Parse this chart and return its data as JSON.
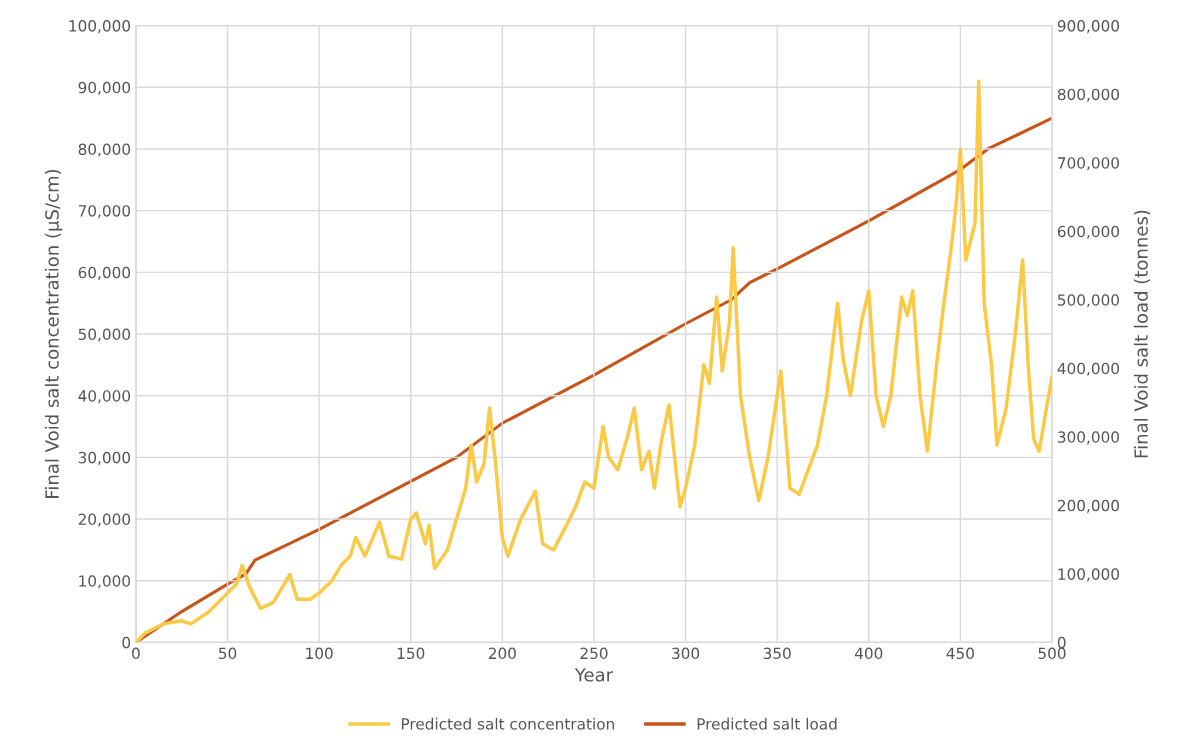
{
  "chart_data": {
    "type": "line",
    "xlabel": "Year",
    "ylabel": "Final Void salt concentration (µS/cm)",
    "y2label": "Final Void salt load (tonnes)",
    "xlim": [
      0,
      500
    ],
    "xticks": [
      0,
      50,
      100,
      150,
      200,
      250,
      300,
      350,
      400,
      450,
      500
    ],
    "ylim": [
      0,
      100000
    ],
    "yticks": [
      {
        "value": 0,
        "label": "0"
      },
      {
        "value": 10000,
        "label": "10,000"
      },
      {
        "value": 20000,
        "label": "20,000"
      },
      {
        "value": 30000,
        "label": "30,000"
      },
      {
        "value": 40000,
        "label": "40,000"
      },
      {
        "value": 50000,
        "label": "50,000"
      },
      {
        "value": 60000,
        "label": "60,000"
      },
      {
        "value": 70000,
        "label": "70,000"
      },
      {
        "value": 80000,
        "label": "80,000"
      },
      {
        "value": 90000,
        "label": "90,000"
      },
      {
        "value": 100000,
        "label": "100,000"
      }
    ],
    "y2lim": [
      0,
      900000
    ],
    "y2ticks": [
      {
        "value": 0,
        "label": "0"
      },
      {
        "value": 100000,
        "label": "100,000"
      },
      {
        "value": 200000,
        "label": "200,000"
      },
      {
        "value": 300000,
        "label": "300,000"
      },
      {
        "value": 400000,
        "label": "400,000"
      },
      {
        "value": 500000,
        "label": "500,000"
      },
      {
        "value": 600000,
        "label": "600,000"
      },
      {
        "value": 700000,
        "label": "700,000"
      },
      {
        "value": 800000,
        "label": "800,000"
      },
      {
        "value": 900000,
        "label": "900,000"
      }
    ],
    "grid": true,
    "legend": "bottom",
    "marker": "none",
    "line_style": "solid",
    "series": [
      {
        "name": "Predicted salt concentration",
        "color": "#fcc945",
        "x": [
          0,
          5,
          15,
          25,
          30,
          40,
          50,
          55,
          58,
          62,
          68,
          75,
          84,
          88,
          95,
          100,
          107,
          112,
          117,
          120,
          125,
          133,
          138,
          145,
          150,
          153,
          158,
          160,
          163,
          170,
          175,
          180,
          183,
          186,
          190,
          193,
          196,
          200,
          203,
          210,
          218,
          222,
          228,
          235,
          240,
          245,
          250,
          255,
          258,
          263,
          268,
          272,
          276,
          280,
          283,
          287,
          291,
          294,
          297,
          300,
          305,
          310,
          313,
          317,
          320,
          324,
          326,
          330,
          335,
          340,
          345,
          352,
          357,
          362,
          367,
          372,
          377,
          383,
          386,
          390,
          396,
          400,
          404,
          408,
          412,
          418,
          421,
          424,
          428,
          432,
          437,
          441,
          445,
          448,
          450,
          453,
          458,
          460,
          463,
          467,
          470,
          475,
          480,
          484,
          487,
          490,
          493,
          497,
          500
        ],
        "values": [
          0,
          1500,
          3000,
          3500,
          3000,
          5000,
          8000,
          9500,
          12500,
          9000,
          5500,
          6500,
          11000,
          7000,
          7000,
          8000,
          10000,
          12500,
          14000,
          17000,
          14000,
          19500,
          14000,
          13500,
          20000,
          21000,
          16000,
          19000,
          12000,
          15000,
          20000,
          25000,
          32000,
          26000,
          29000,
          38000,
          30000,
          17000,
          14000,
          20000,
          24500,
          16000,
          15000,
          19000,
          22000,
          26000,
          25000,
          35000,
          30000,
          28000,
          33000,
          38000,
          28000,
          31000,
          25000,
          33000,
          38500,
          30000,
          22000,
          25000,
          32000,
          45000,
          42000,
          56000,
          44000,
          52000,
          64000,
          40000,
          30000,
          23000,
          30000,
          44000,
          25000,
          24000,
          28000,
          32000,
          40000,
          55000,
          46000,
          40000,
          52000,
          57000,
          40000,
          35000,
          40000,
          56000,
          53000,
          57000,
          40000,
          31000,
          45000,
          55000,
          64000,
          72000,
          80000,
          62000,
          68000,
          91000,
          55000,
          45000,
          32000,
          38000,
          50000,
          62000,
          45000,
          33000,
          31000,
          38000,
          43000
        ]
      },
      {
        "name": "Predicted salt load",
        "color": "#c8541a",
        "axis": "y2",
        "x": [
          0,
          25,
          50,
          60,
          65,
          100,
          150,
          175,
          200,
          250,
          300,
          325,
          335,
          350,
          400,
          450,
          465,
          500
        ],
        "values": [
          0,
          45000,
          85000,
          100000,
          120000,
          165000,
          235000,
          270000,
          320000,
          390000,
          465000,
          500000,
          525000,
          545000,
          615000,
          690000,
          720000,
          765000
        ]
      }
    ]
  }
}
